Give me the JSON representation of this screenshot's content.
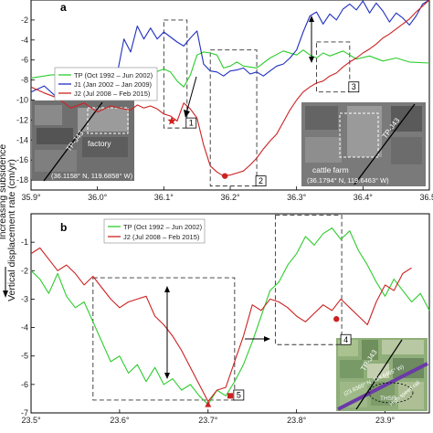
{
  "chart_data": [
    {
      "type": "line",
      "panel_label": "a",
      "xlim": [
        35.9,
        36.5
      ],
      "ylim": [
        -19,
        0
      ],
      "xticks": [
        "35.9°",
        "36.0°",
        "36.1°",
        "36.2°",
        "36.3°",
        "36.4°",
        "36.5°"
      ],
      "yticks": [
        "-2",
        "-4",
        "-6",
        "-8",
        "-10",
        "-12",
        "-14",
        "-16",
        "-18"
      ],
      "series": [
        {
          "name": "TP (Oct 1992 – Jun 2002)",
          "color": "#2ecc2e",
          "x": [
            35.9,
            35.93,
            35.96,
            35.98,
            36.0,
            36.02,
            36.04,
            36.06,
            36.08,
            36.1,
            36.11,
            36.12,
            36.13,
            36.14,
            36.15,
            36.16,
            36.17,
            36.18,
            36.19,
            36.2,
            36.21,
            36.22,
            36.24,
            36.26,
            36.28,
            36.3,
            36.31,
            36.32,
            36.33,
            36.34,
            36.35,
            36.37,
            36.39,
            36.41,
            36.43,
            36.45,
            36.47,
            36.5
          ],
          "y": [
            -7.8,
            -7.5,
            -7.4,
            -7.6,
            -7.5,
            -7.3,
            -7.2,
            -6.8,
            -7.4,
            -6.9,
            -7.2,
            -8.1,
            -8.7,
            -7.5,
            -5.5,
            -5.2,
            -5.3,
            -5.5,
            -6.8,
            -6.6,
            -6.2,
            -6.6,
            -6.8,
            -5.8,
            -5.1,
            -5.5,
            -5.0,
            -5.5,
            -5.8,
            -5.3,
            -5.6,
            -5.1,
            -5.9,
            -5.6,
            -6.1,
            -5.8,
            -6.2,
            -6.3
          ]
        },
        {
          "name": "J1 (Jan 2002 – Jan 2009)",
          "color": "#1f2fbf",
          "x": [
            35.9,
            35.92,
            35.94,
            35.96,
            35.98,
            36.0,
            36.01,
            36.02,
            36.03,
            36.04,
            36.05,
            36.06,
            36.07,
            36.08,
            36.09,
            36.1,
            36.11,
            36.12,
            36.13,
            36.14,
            36.15,
            36.16,
            36.17,
            36.18,
            36.19,
            36.2,
            36.21,
            36.22,
            36.23,
            36.24,
            36.25,
            36.26,
            36.27,
            36.28,
            36.29,
            36.3,
            36.31,
            36.32,
            36.33,
            36.34,
            36.35,
            36.36,
            36.37,
            36.38,
            36.39,
            36.4,
            36.41,
            36.42,
            36.43,
            36.44,
            36.45,
            36.46,
            36.47,
            36.48,
            36.49,
            36.5
          ],
          "y": [
            -9.2,
            -8.6,
            -9.8,
            -9.0,
            -9.6,
            -9.3,
            -8.4,
            -7.1,
            -7.3,
            -3.9,
            -5.2,
            -2.6,
            -3.9,
            -2.8,
            -3.9,
            -3.2,
            -3.7,
            -4.2,
            -4.6,
            -3.8,
            -3.1,
            -6.4,
            -7.1,
            -7.2,
            -7.6,
            -7.1,
            -7.0,
            -6.8,
            -7.4,
            -7.2,
            -7.6,
            -7.1,
            -6.6,
            -6.4,
            -5.8,
            -5.0,
            -3.2,
            -1.6,
            -1.2,
            -2.4,
            -1.4,
            -2.0,
            -0.9,
            -0.4,
            -1.0,
            -0.1,
            -1.3,
            -0.3,
            -1.1,
            -2.2,
            -1.3,
            -1.8,
            -2.5,
            -1.6,
            -0.4,
            0.0
          ]
        },
        {
          "name": "J2 (Jul 2008 – Feb 2015)",
          "color": "#cc2222",
          "x": [
            35.9,
            35.92,
            35.94,
            35.96,
            35.98,
            36.0,
            36.02,
            36.04,
            36.05,
            36.06,
            36.07,
            36.08,
            36.09,
            36.1,
            36.11,
            36.12,
            36.13,
            36.14,
            36.15,
            36.16,
            36.17,
            36.18,
            36.19,
            36.2,
            36.21,
            36.22,
            36.23,
            36.24,
            36.25,
            36.26,
            36.27,
            36.28,
            36.29,
            36.3,
            36.31,
            36.32,
            36.33,
            36.34,
            36.35,
            36.36,
            36.37,
            36.38,
            36.39,
            36.4,
            36.41,
            36.42,
            36.43,
            36.44,
            36.45,
            36.46,
            36.47,
            36.48,
            36.49,
            36.5
          ],
          "y": [
            -8.7,
            -9.3,
            -9.8,
            -10.8,
            -10.3,
            -11.2,
            -10.6,
            -10.9,
            -11.0,
            -10.5,
            -10.8,
            -10.6,
            -10.9,
            -11.4,
            -11.6,
            -12.1,
            -10.3,
            -10.9,
            -11.8,
            -14.5,
            -16.6,
            -17.2,
            -17.6,
            -17.5,
            -17.3,
            -17.1,
            -16.5,
            -15.8,
            -14.9,
            -14.1,
            -13.4,
            -12.2,
            -11.0,
            -10.0,
            -9.2,
            -8.7,
            -8.3,
            -8.1,
            -7.6,
            -7.3,
            -6.7,
            -6.2,
            -5.8,
            -5.3,
            -4.9,
            -4.4,
            -3.8,
            -3.4,
            -2.9,
            -2.4,
            -1.9,
            -1.2,
            -0.6,
            0.0
          ]
        }
      ],
      "markers": [
        {
          "shape": "star",
          "x": 36.112,
          "y": -12.1,
          "color": "#cc2222"
        },
        {
          "shape": "circle",
          "x": 36.192,
          "y": -17.6,
          "color": "#cc2222"
        }
      ],
      "boxes": [
        {
          "label": "1",
          "x0": 36.1,
          "x1": 36.135,
          "y0": -2.0,
          "y1": -12.8
        },
        {
          "label": "2",
          "x0": 36.17,
          "x1": 36.24,
          "y0": -5.0,
          "y1": -18.6
        },
        {
          "label": "3",
          "x0": 36.33,
          "x1": 36.38,
          "y0": -4.2,
          "y1": -9.2
        }
      ],
      "insets": [
        {
          "label": "factory",
          "coords": "(36.1158° N, 119.6858° W)",
          "line_label": "TP-J43"
        },
        {
          "label": "cattle farm",
          "coords": "(36.1794° N, 119.6463° W)",
          "line_label": "TP-J43"
        }
      ]
    },
    {
      "type": "line",
      "panel_label": "b",
      "xlim": [
        23.5,
        23.95
      ],
      "ylim": [
        -7,
        0
      ],
      "xticks": [
        "23.5°",
        "23.6°",
        "23.7°",
        "23.8°",
        "23.9°"
      ],
      "yticks": [
        "-1",
        "-2",
        "-3",
        "-4",
        "-5",
        "-6",
        "-7"
      ],
      "series": [
        {
          "name": "TP (Oct 1992 – Jun 2002)",
          "color": "#2ecc2e",
          "x": [
            23.5,
            23.51,
            23.52,
            23.53,
            23.54,
            23.55,
            23.56,
            23.57,
            23.58,
            23.59,
            23.6,
            23.61,
            23.62,
            23.63,
            23.64,
            23.65,
            23.66,
            23.67,
            23.68,
            23.69,
            23.7,
            23.71,
            23.72,
            23.73,
            23.74,
            23.75,
            23.76,
            23.77,
            23.78,
            23.79,
            23.8,
            23.81,
            23.82,
            23.83,
            23.84,
            23.85,
            23.86,
            23.87,
            23.88,
            23.89,
            23.9,
            23.91,
            23.92,
            23.93,
            23.94,
            23.95
          ],
          "y": [
            -2.0,
            -2.3,
            -2.8,
            -2.1,
            -2.9,
            -3.3,
            -3.1,
            -3.8,
            -4.5,
            -5.2,
            -5.0,
            -5.6,
            -5.3,
            -5.9,
            -5.4,
            -6.0,
            -5.8,
            -6.2,
            -6.0,
            -6.4,
            -6.7,
            -6.2,
            -6.4,
            -5.9,
            -5.3,
            -4.5,
            -3.6,
            -2.7,
            -2.4,
            -1.8,
            -1.4,
            -0.8,
            -1.1,
            -0.7,
            -0.5,
            -0.9,
            -0.6,
            -1.3,
            -1.8,
            -2.4,
            -2.9,
            -2.3,
            -2.7,
            -3.1,
            -2.8,
            -3.4
          ]
        },
        {
          "name": "J2 (Jul 2008 – Feb 2015)",
          "color": "#cc2222",
          "x": [
            23.5,
            23.51,
            23.52,
            23.53,
            23.54,
            23.55,
            23.56,
            23.57,
            23.58,
            23.59,
            23.6,
            23.61,
            23.62,
            23.63,
            23.64,
            23.65,
            23.66,
            23.67,
            23.68,
            23.69,
            23.7,
            23.71,
            23.72,
            23.73,
            23.74,
            23.75,
            23.76,
            23.77,
            23.78,
            23.79,
            23.8,
            23.81,
            23.82,
            23.83,
            23.84,
            23.85,
            23.86,
            23.87,
            23.88,
            23.89,
            23.9,
            23.91,
            23.92,
            23.93
          ],
          "y": [
            -1.4,
            -1.2,
            -1.6,
            -2.0,
            -1.8,
            -2.1,
            -2.5,
            -2.2,
            -2.6,
            -3.0,
            -3.3,
            -3.1,
            -3.0,
            -2.9,
            -3.6,
            -3.9,
            -4.3,
            -4.8,
            -5.4,
            -6.0,
            -6.6,
            -6.2,
            -6.1,
            -5.2,
            -4.3,
            -3.2,
            -3.4,
            -3.0,
            -3.1,
            -3.3,
            -3.6,
            -3.8,
            -3.5,
            -3.2,
            -3.4,
            -3.0,
            -3.3,
            -3.6,
            -3.9,
            -3.1,
            -2.5,
            -2.7,
            -2.1,
            -1.9
          ]
        }
      ],
      "markers": [
        {
          "shape": "triangle",
          "x": 23.7,
          "y": -6.7,
          "color": "#cc2222"
        },
        {
          "shape": "square",
          "x": 23.725,
          "y": -6.4,
          "color": "#cc2222"
        },
        {
          "shape": "circle",
          "x": 23.845,
          "y": -3.7,
          "color": "#cc2222"
        }
      ],
      "boxes": [
        {
          "label": "4",
          "x0": 23.776,
          "x1": 23.851,
          "y0": -0.05,
          "y1": -4.6
        },
        {
          "label": "5",
          "x0": 23.57,
          "x1": 23.73,
          "y0": -2.25,
          "y1": -6.55
        }
      ],
      "insets": [
        {
          "line_label": "TP-J43",
          "coords": "(23.8360° N, 119.6465° W)",
          "labels": [
            "THSR",
            "High speed rail"
          ]
        }
      ]
    }
  ],
  "labels": {
    "ylabel": "Vertical displacement rate (cm/yr)",
    "side_label": "Increasing subsidence",
    "box1": "1",
    "box2": "2",
    "box3": "3",
    "box4": "4",
    "box5": "5",
    "factory": "factory",
    "cattle_farm": "cattle farm",
    "coords_a1": "(36.1158° N, 119.6858° W)",
    "coords_a2": "(36.1794° N, 119.6463° W)",
    "line_label": "TP-J43",
    "coords_b": "(23.8360° N, 119.6465° W)",
    "thsr": "THSR",
    "hsr": "High speed rail"
  },
  "colors": {
    "tp": "#2ecc2e",
    "j1": "#1f2fbf",
    "j2": "#cc2222",
    "highway": "#6a3aa8"
  }
}
